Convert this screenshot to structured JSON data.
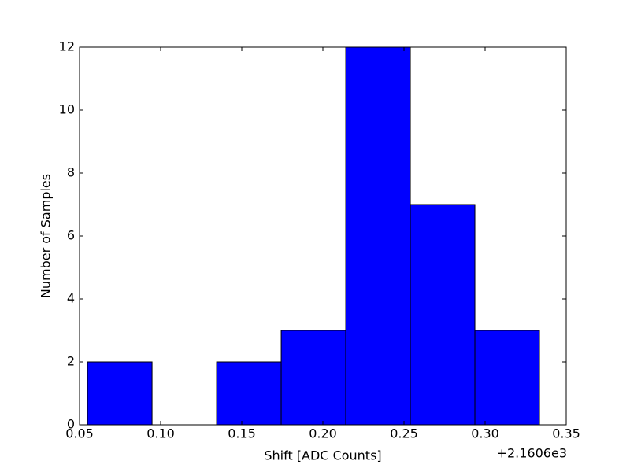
{
  "chart_data": {
    "type": "histogram",
    "x_label": "Shift [ADC Counts]",
    "y_label": "Number of Samples",
    "x_offset_label": "+2.1606e3",
    "bins": [
      0.0549,
      0.0947,
      0.1345,
      0.1743,
      0.2141,
      0.2539,
      0.2937,
      0.3335
    ],
    "counts": [
      2,
      0,
      2,
      3,
      12,
      7,
      3
    ],
    "color": "#0000ff",
    "xlim": [
      0.05,
      0.35
    ],
    "xticks": [
      0.05,
      {
        "value": 0.1,
        "label": "0.10"
      },
      0.15,
      {
        "value": 0.2,
        "label": "0.20"
      },
      0.25,
      {
        "value": 0.3,
        "label": "0.30"
      },
      0.35
    ],
    "ylim": [
      0,
      12
    ],
    "yticks": [
      0,
      2,
      4,
      6,
      8,
      10,
      12
    ],
    "grid": false
  }
}
